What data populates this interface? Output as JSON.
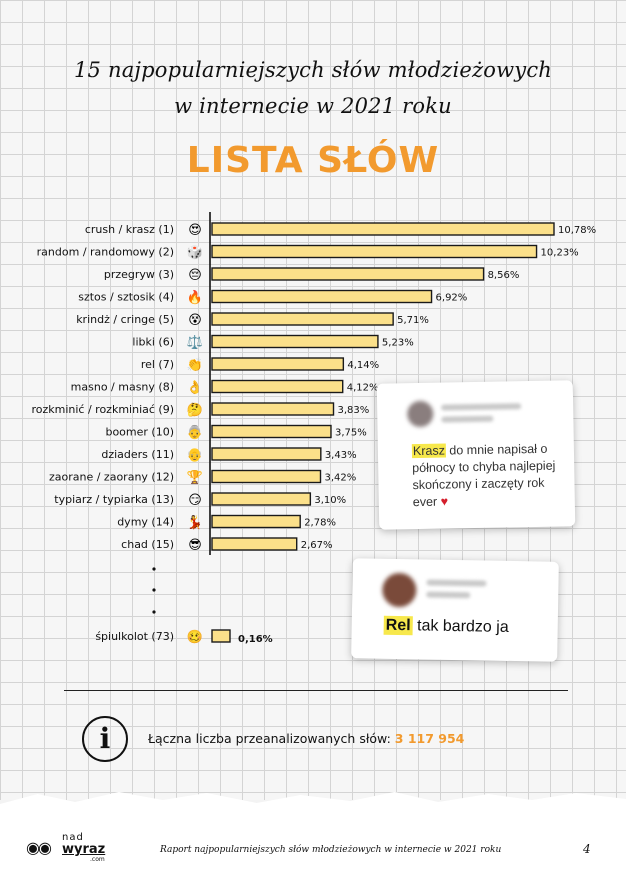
{
  "title_line1": "15 najpopularniejszych słów młodzieżowych",
  "title_line2": "w internecie w 2021 roku",
  "headline": "LISTA SŁÓW",
  "chart_data": {
    "type": "bar",
    "orientation": "horizontal",
    "title": "",
    "xlabel": "",
    "ylabel": "",
    "categories": [
      "crush / krasz (1)",
      "random / randomowy (2)",
      "przegryw (3)",
      "sztos / sztosik (4)",
      "krindż / cringe (5)",
      "libki (6)",
      "rel (7)",
      "masno / masny (8)",
      "rozkminić / rozkminiać (9)",
      "boomer (10)",
      "dziaders (11)",
      "zaorane / zaorany (12)",
      "typiarz / typiarka (13)",
      "dymy (14)",
      "chad (15)",
      "śpiulkolot (73)"
    ],
    "values": [
      10.78,
      10.23,
      8.56,
      6.92,
      5.71,
      5.23,
      4.14,
      4.12,
      3.83,
      3.75,
      3.43,
      3.42,
      3.1,
      2.78,
      2.67,
      0.16
    ],
    "value_labels": [
      "10,78%",
      "10,23%",
      "8,56%",
      "6,92%",
      "5,71%",
      "5,23%",
      "4,14%",
      "4,12%",
      "3,83%",
      "3,75%",
      "3,43%",
      "3,42%",
      "3,10%",
      "2,78%",
      "2,67%",
      "0,16%"
    ],
    "emojis": [
      "😍",
      "🎲",
      "😔",
      "🔥",
      "😵",
      "⚖️",
      "👏",
      "👌",
      "🤔",
      "👵",
      "👴",
      "🏆",
      "😏",
      "💃",
      "😎",
      "🥴"
    ],
    "highlight_color": "#e0524d",
    "bar_color": "#fbe08a",
    "grid": false,
    "legend": "none"
  },
  "comment1": {
    "highlight": "Krasz",
    "text": "do mnie napisał o północy to chyba najlepiej skończony i zaczęty rok ever",
    "emoji": "♥"
  },
  "comment2": {
    "highlight": "Rel",
    "text": "tak bardzo ja"
  },
  "info": {
    "icon": "i",
    "label": "Łączna liczba przeanalizowanych słów:",
    "value": "3 117 954"
  },
  "logo": {
    "nad": "nad",
    "wyraz": "wyraz",
    "com": ".com"
  },
  "footer": "Raport najpopularniejszych słów młodzieżowych w internecie w 2021 roku",
  "page_number": "4",
  "colors": {
    "accent": "#f29a2e",
    "highlight_text": "#e0524d",
    "bar": "#fbe08a"
  }
}
